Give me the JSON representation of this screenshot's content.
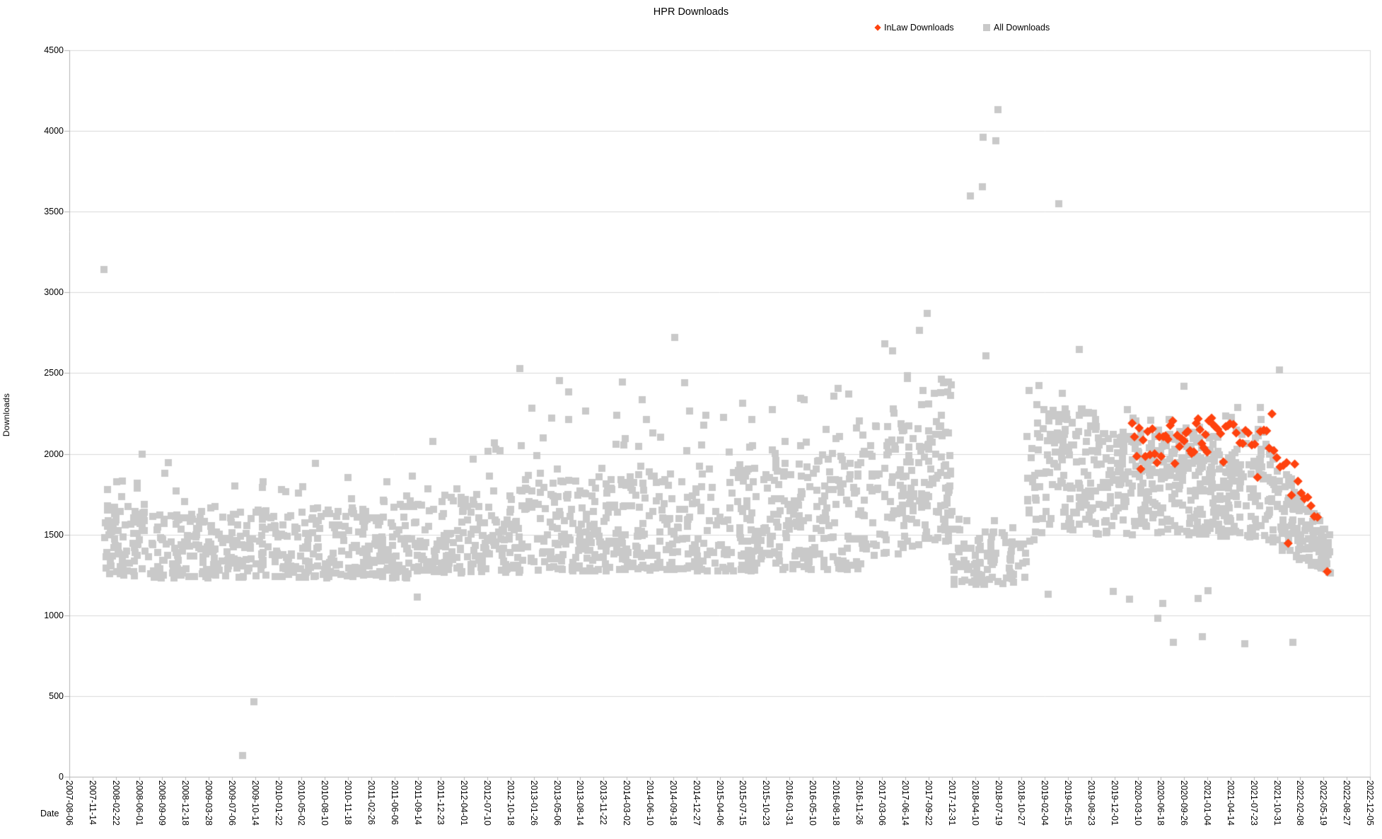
{
  "chart_data": {
    "type": "scatter",
    "title": "HPR Downloads",
    "xlabel": "Date",
    "ylabel": "Downloads",
    "ylim": [
      0,
      4500
    ],
    "y_tick_interval": 500,
    "y_tick_labels": [
      "0",
      "500",
      "1000",
      "1500",
      "2000",
      "2500",
      "3000",
      "3500",
      "4000",
      "4500"
    ],
    "x_unit": "days since 2007-08-06",
    "x_domain_days": [
      0,
      5600
    ],
    "x_tick_spacing_days": 100,
    "x_tick_labels": [
      "2007-08-06",
      "2007-11-14",
      "2008-02-22",
      "2008-06-01",
      "2008-09-09",
      "2008-12-18",
      "2009-03-28",
      "2009-07-06",
      "2009-10-14",
      "2010-01-22",
      "2010-05-02",
      "2010-08-10",
      "2010-11-18",
      "2011-02-26",
      "2011-06-06",
      "2011-09-14",
      "2011-12-23",
      "2012-04-01",
      "2012-07-10",
      "2012-10-18",
      "2013-01-26",
      "2013-05-06",
      "2013-08-14",
      "2013-11-22",
      "2014-03-02",
      "2014-06-10",
      "2014-09-18",
      "2014-12-27",
      "2015-04-06",
      "2015-07-15",
      "2015-10-23",
      "2016-01-31",
      "2016-05-10",
      "2016-08-18",
      "2016-11-26",
      "2017-03-06",
      "2017-06-14",
      "2017-09-22",
      "2017-12-31",
      "2018-04-10",
      "2018-07-19",
      "2018-10-27",
      "2019-02-04",
      "2019-05-15",
      "2019-08-23",
      "2019-12-01",
      "2020-03-10",
      "2020-06-18",
      "2020-09-26",
      "2021-01-04",
      "2021-04-14",
      "2021-07-23",
      "2021-10-31",
      "2022-02-08",
      "2022-05-19",
      "2022-08-27",
      "2022-12-05"
    ],
    "grid": "horizontal",
    "legend_position": "top",
    "colors": {
      "background": "#ffffff",
      "grid": "#d9d9d9",
      "axis": "#b3b3b3",
      "text": "#000000",
      "inlaw": "#ff420e",
      "all": "#c9c9c9"
    },
    "series": [
      {
        "name": "InLaw Downloads",
        "marker": "diamond",
        "color": "#ff420e",
        "points": [
          [
            4576,
            2190
          ],
          [
            4586,
            2105
          ],
          [
            4596,
            1985
          ],
          [
            4606,
            2160
          ],
          [
            4613,
            1906
          ],
          [
            4623,
            2086
          ],
          [
            4633,
            1984
          ],
          [
            4643,
            2138
          ],
          [
            4653,
            1995
          ],
          [
            4663,
            2155
          ],
          [
            4673,
            2000
          ],
          [
            4683,
            1945
          ],
          [
            4693,
            2105
          ],
          [
            4701,
            1984
          ],
          [
            4710,
            2107
          ],
          [
            4720,
            2112
          ],
          [
            4730,
            2090
          ],
          [
            4740,
            2175
          ],
          [
            4751,
            2204
          ],
          [
            4760,
            1940
          ],
          [
            4770,
            2115
          ],
          [
            4780,
            2045
          ],
          [
            4790,
            2092
          ],
          [
            4800,
            2080
          ],
          [
            4808,
            2129
          ],
          [
            4816,
            2140
          ],
          [
            4826,
            2020
          ],
          [
            4832,
            2002
          ],
          [
            4842,
            2012
          ],
          [
            4852,
            2190
          ],
          [
            4860,
            2217
          ],
          [
            4868,
            2150
          ],
          [
            4876,
            2064
          ],
          [
            4884,
            2038
          ],
          [
            4892,
            2120
          ],
          [
            4899,
            2011
          ],
          [
            4906,
            2205
          ],
          [
            4918,
            2221
          ],
          [
            4926,
            2180
          ],
          [
            4933,
            2169
          ],
          [
            4945,
            2152
          ],
          [
            4957,
            2125
          ],
          [
            4969,
            1950
          ],
          [
            4979,
            2169
          ],
          [
            4988,
            2174
          ],
          [
            4997,
            2186
          ],
          [
            5012,
            2182
          ],
          [
            5024,
            2129
          ],
          [
            5040,
            2068
          ],
          [
            5052,
            2064
          ],
          [
            5064,
            2145
          ],
          [
            5076,
            2129
          ],
          [
            5091,
            2055
          ],
          [
            5104,
            2059
          ],
          [
            5116,
            1855
          ],
          [
            5128,
            2138
          ],
          [
            5143,
            2147
          ],
          [
            5155,
            2143
          ],
          [
            5166,
            2035
          ],
          [
            5178,
            2248
          ],
          [
            5186,
            2020
          ],
          [
            5199,
            1976
          ],
          [
            5213,
            1919
          ],
          [
            5227,
            1928
          ],
          [
            5241,
            1945
          ],
          [
            5248,
            1446
          ],
          [
            5262,
            1744
          ],
          [
            5276,
            1937
          ],
          [
            5290,
            1831
          ],
          [
            5304,
            1757
          ],
          [
            5318,
            1722
          ],
          [
            5332,
            1731
          ],
          [
            5346,
            1678
          ],
          [
            5360,
            1612
          ],
          [
            5374,
            1608
          ],
          [
            5416,
            1271
          ]
        ]
      },
      {
        "name": "All Downloads",
        "marker": "square",
        "color": "#c9c9c9",
        "representation": "density_bands",
        "density_bands": [
          {
            "d0": 150,
            "d1": 350,
            "n": 80,
            "low": [
              1245,
              1240
            ],
            "high": [
              1690,
              1660
            ],
            "exp": 1.3,
            "fringe_n": 6,
            "fringe_high": 1850
          },
          {
            "d0": 350,
            "d1": 700,
            "n": 125,
            "low": [
              1230,
              1230
            ],
            "high": [
              1630,
              1645
            ],
            "exp": 1.3,
            "fringe_n": 7,
            "fringe_high": 1950
          },
          {
            "d0": 700,
            "d1": 1100,
            "n": 150,
            "low": [
              1230,
              1235
            ],
            "high": [
              1650,
              1665
            ],
            "exp": 1.3,
            "fringe_n": 7,
            "fringe_high": 1830
          },
          {
            "d0": 1100,
            "d1": 1500,
            "n": 150,
            "low": [
              1230,
              1230
            ],
            "high": [
              1665,
              1690
            ],
            "exp": 1.3,
            "fringe_n": 8,
            "fringe_high": 1880
          },
          {
            "d0": 1500,
            "d1": 1900,
            "n": 150,
            "low": [
              1250,
              1260
            ],
            "high": [
              1720,
              1785
            ],
            "exp": 1.3,
            "fringe_n": 10,
            "fringe_high": 2100
          },
          {
            "d0": 1900,
            "d1": 2300,
            "n": 155,
            "low": [
              1265,
              1275
            ],
            "high": [
              1825,
              1875
            ],
            "exp": 1.3,
            "fringe_n": 12,
            "fringe_high": 2290
          },
          {
            "d0": 2300,
            "d1": 2700,
            "n": 155,
            "low": [
              1275,
              1285
            ],
            "high": [
              1870,
              1915
            ],
            "exp": 1.3,
            "fringe_n": 12,
            "fringe_high": 2340
          },
          {
            "d0": 2700,
            "d1": 3100,
            "n": 155,
            "low": [
              1270,
              1280
            ],
            "high": [
              1925,
              1965
            ],
            "exp": 1.3,
            "fringe_n": 12,
            "fringe_high": 2350
          },
          {
            "d0": 3100,
            "d1": 3450,
            "n": 140,
            "low": [
              1275,
              1285
            ],
            "high": [
              1985,
              2025
            ],
            "exp": 1.3,
            "fringe_n": 12,
            "fringe_high": 2430
          },
          {
            "d0": 3450,
            "d1": 3735,
            "n": 120,
            "low": [
              1340,
              1430
            ],
            "high": [
              2110,
              2230
            ],
            "exp": 1.1,
            "fringe_n": 13,
            "fringe_high": 2520
          },
          {
            "d0": 3735,
            "d1": 3800,
            "n": 45,
            "low": [
              1430,
              1400
            ],
            "high": [
              2490,
              2450
            ],
            "exp": 0.95,
            "fringe_n": 0,
            "fringe_high": 0
          },
          {
            "d0": 3800,
            "d1": 4120,
            "n": 90,
            "low": [
              1185,
              1200
            ],
            "high": [
              1565,
              1560
            ],
            "exp": 1.4,
            "fringe_n": 4,
            "fringe_high": 1700
          },
          {
            "d0": 4120,
            "d1": 4420,
            "n": 140,
            "low": [
              1450,
              1560
            ],
            "high": [
              2300,
              2260
            ],
            "exp": 1.0,
            "fringe_n": 6,
            "fringe_high": 2430
          },
          {
            "d0": 4420,
            "d1": 5150,
            "n": 400,
            "low": [
              1500,
              1485
            ],
            "high": [
              2130,
              2155
            ],
            "exp": 1.15,
            "fringe_n": 14,
            "fringe_high": 2390
          },
          {
            "d0": 5150,
            "d1": 5430,
            "n": 150,
            "low": [
              1455,
              1245
            ],
            "high": [
              2085,
              1500
            ],
            "exp": 1.1,
            "fringe_n": 0,
            "fringe_high": 0
          }
        ],
        "outliers": [
          [
            149,
            3141
          ],
          [
            204,
            1825
          ],
          [
            314,
            2000
          ],
          [
            746,
            131
          ],
          [
            795,
            464
          ],
          [
            1060,
            1940
          ],
          [
            1498,
            1113
          ],
          [
            1940,
            2528
          ],
          [
            2110,
            2452
          ],
          [
            2150,
            2383
          ],
          [
            2380,
            2445
          ],
          [
            2606,
            2721
          ],
          [
            2650,
            2440
          ],
          [
            2900,
            2315
          ],
          [
            3310,
            2405
          ],
          [
            3511,
            2681
          ],
          [
            3544,
            2637
          ],
          [
            3660,
            2765
          ],
          [
            3694,
            2870
          ],
          [
            3879,
            3597
          ],
          [
            3931,
            3654
          ],
          [
            3934,
            3961
          ],
          [
            3946,
            2607
          ],
          [
            3989,
            3939
          ],
          [
            3998,
            4131
          ],
          [
            4214,
            1131
          ],
          [
            4260,
            3549
          ],
          [
            4348,
            2645
          ],
          [
            4495,
            1148
          ],
          [
            4564,
            1100
          ],
          [
            4686,
            981
          ],
          [
            4707,
            1073
          ],
          [
            4753,
            832
          ],
          [
            4800,
            2420
          ],
          [
            4860,
            1104
          ],
          [
            4878,
            868
          ],
          [
            4902,
            1152
          ],
          [
            5060,
            824
          ],
          [
            5210,
            2519
          ],
          [
            5267,
            832
          ]
        ]
      }
    ]
  }
}
